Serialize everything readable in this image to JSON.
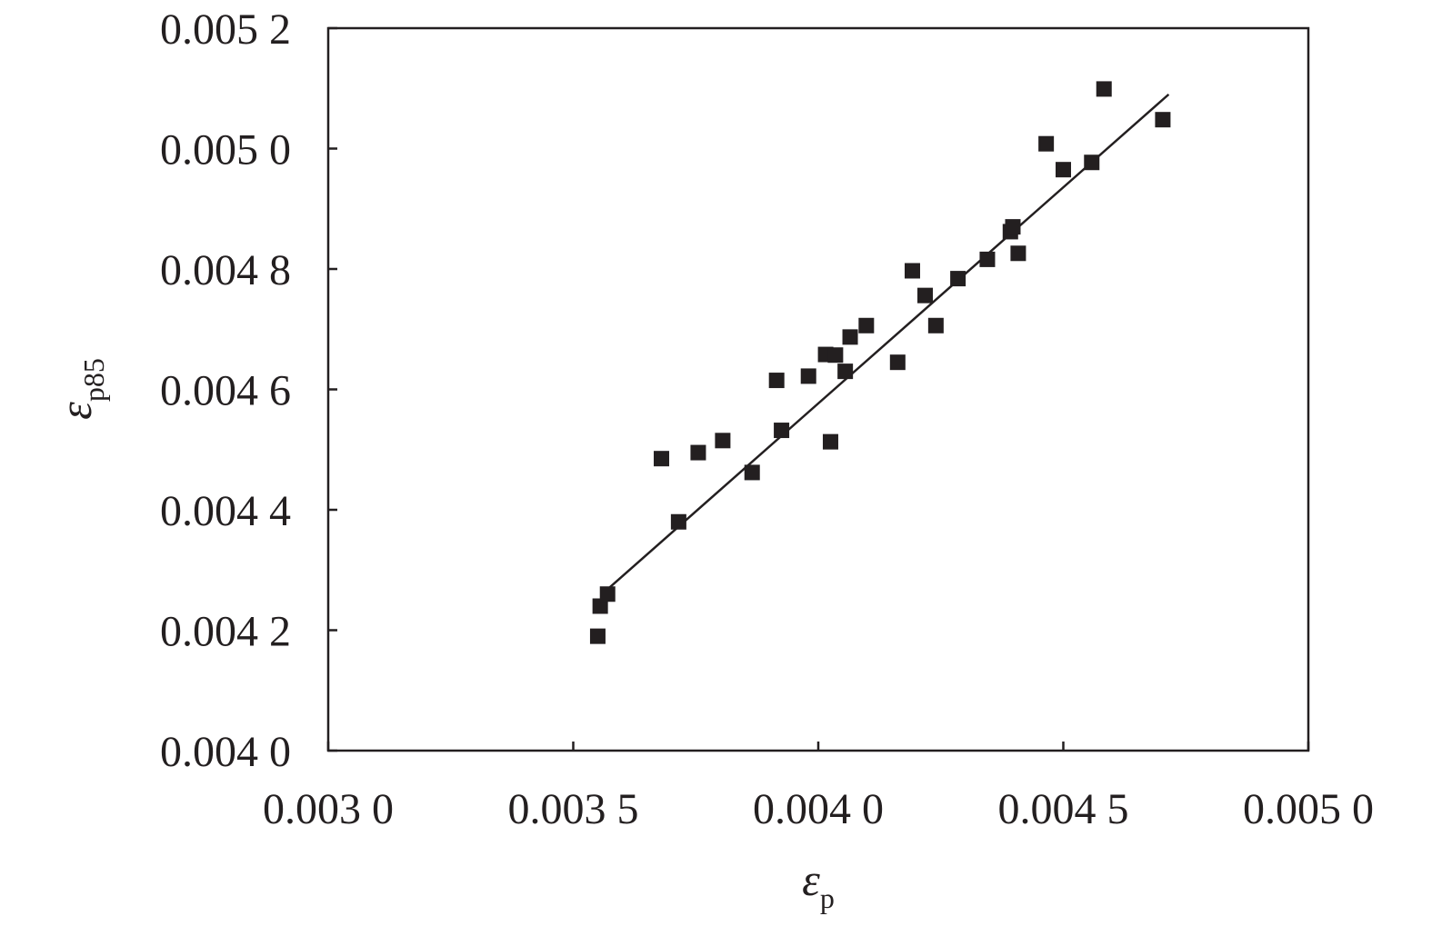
{
  "chart_data": {
    "type": "scatter",
    "title": "",
    "xlabel": {
      "main": "ε",
      "sub": "p"
    },
    "ylabel": {
      "main": "ε",
      "sub": "p85"
    },
    "xlim": [
      0.003,
      0.005
    ],
    "ylim": [
      0.004,
      0.0052
    ],
    "x_ticks": [
      0.003,
      0.0035,
      0.004,
      0.0045,
      0.005
    ],
    "x_tick_labels": [
      "0.003 0",
      "0.003 5",
      "0.004 0",
      "0.004 5",
      "0.005 0"
    ],
    "y_ticks": [
      0.004,
      0.0042,
      0.0044,
      0.0046,
      0.0048,
      0.005,
      0.0052
    ],
    "y_tick_labels": [
      "0.004 0",
      "0.004 2",
      "0.004 4",
      "0.004 6",
      "0.004 8",
      "0.005 0",
      "0.005 2"
    ],
    "grid": false,
    "legend": "none",
    "marker_color": "#231f20",
    "line_color": "#231f20",
    "points": [
      {
        "x": 0.00355,
        "y": 0.00419
      },
      {
        "x": 0.003555,
        "y": 0.00424
      },
      {
        "x": 0.00357,
        "y": 0.00426
      },
      {
        "x": 0.00368,
        "y": 0.004485
      },
      {
        "x": 0.003715,
        "y": 0.00438
      },
      {
        "x": 0.003755,
        "y": 0.004495
      },
      {
        "x": 0.003805,
        "y": 0.004515
      },
      {
        "x": 0.003865,
        "y": 0.004462
      },
      {
        "x": 0.003915,
        "y": 0.004615
      },
      {
        "x": 0.003925,
        "y": 0.004532
      },
      {
        "x": 0.00398,
        "y": 0.004622
      },
      {
        "x": 0.004015,
        "y": 0.004658
      },
      {
        "x": 0.004025,
        "y": 0.004513
      },
      {
        "x": 0.004035,
        "y": 0.004657
      },
      {
        "x": 0.004055,
        "y": 0.00463
      },
      {
        "x": 0.004065,
        "y": 0.004687
      },
      {
        "x": 0.004098,
        "y": 0.004706
      },
      {
        "x": 0.004162,
        "y": 0.004645
      },
      {
        "x": 0.004192,
        "y": 0.004797
      },
      {
        "x": 0.004218,
        "y": 0.004756
      },
      {
        "x": 0.00424,
        "y": 0.004706
      },
      {
        "x": 0.004285,
        "y": 0.004784
      },
      {
        "x": 0.004345,
        "y": 0.004816
      },
      {
        "x": 0.004392,
        "y": 0.004862
      },
      {
        "x": 0.004397,
        "y": 0.00487
      },
      {
        "x": 0.004408,
        "y": 0.004826
      },
      {
        "x": 0.004465,
        "y": 0.005008
      },
      {
        "x": 0.0045,
        "y": 0.004965
      },
      {
        "x": 0.004558,
        "y": 0.004977
      },
      {
        "x": 0.004583,
        "y": 0.005099
      },
      {
        "x": 0.004703,
        "y": 0.005048
      }
    ],
    "fit_line": {
      "x": [
        0.00357,
        0.004715
      ],
      "y": [
        0.004268,
        0.00509
      ]
    }
  }
}
